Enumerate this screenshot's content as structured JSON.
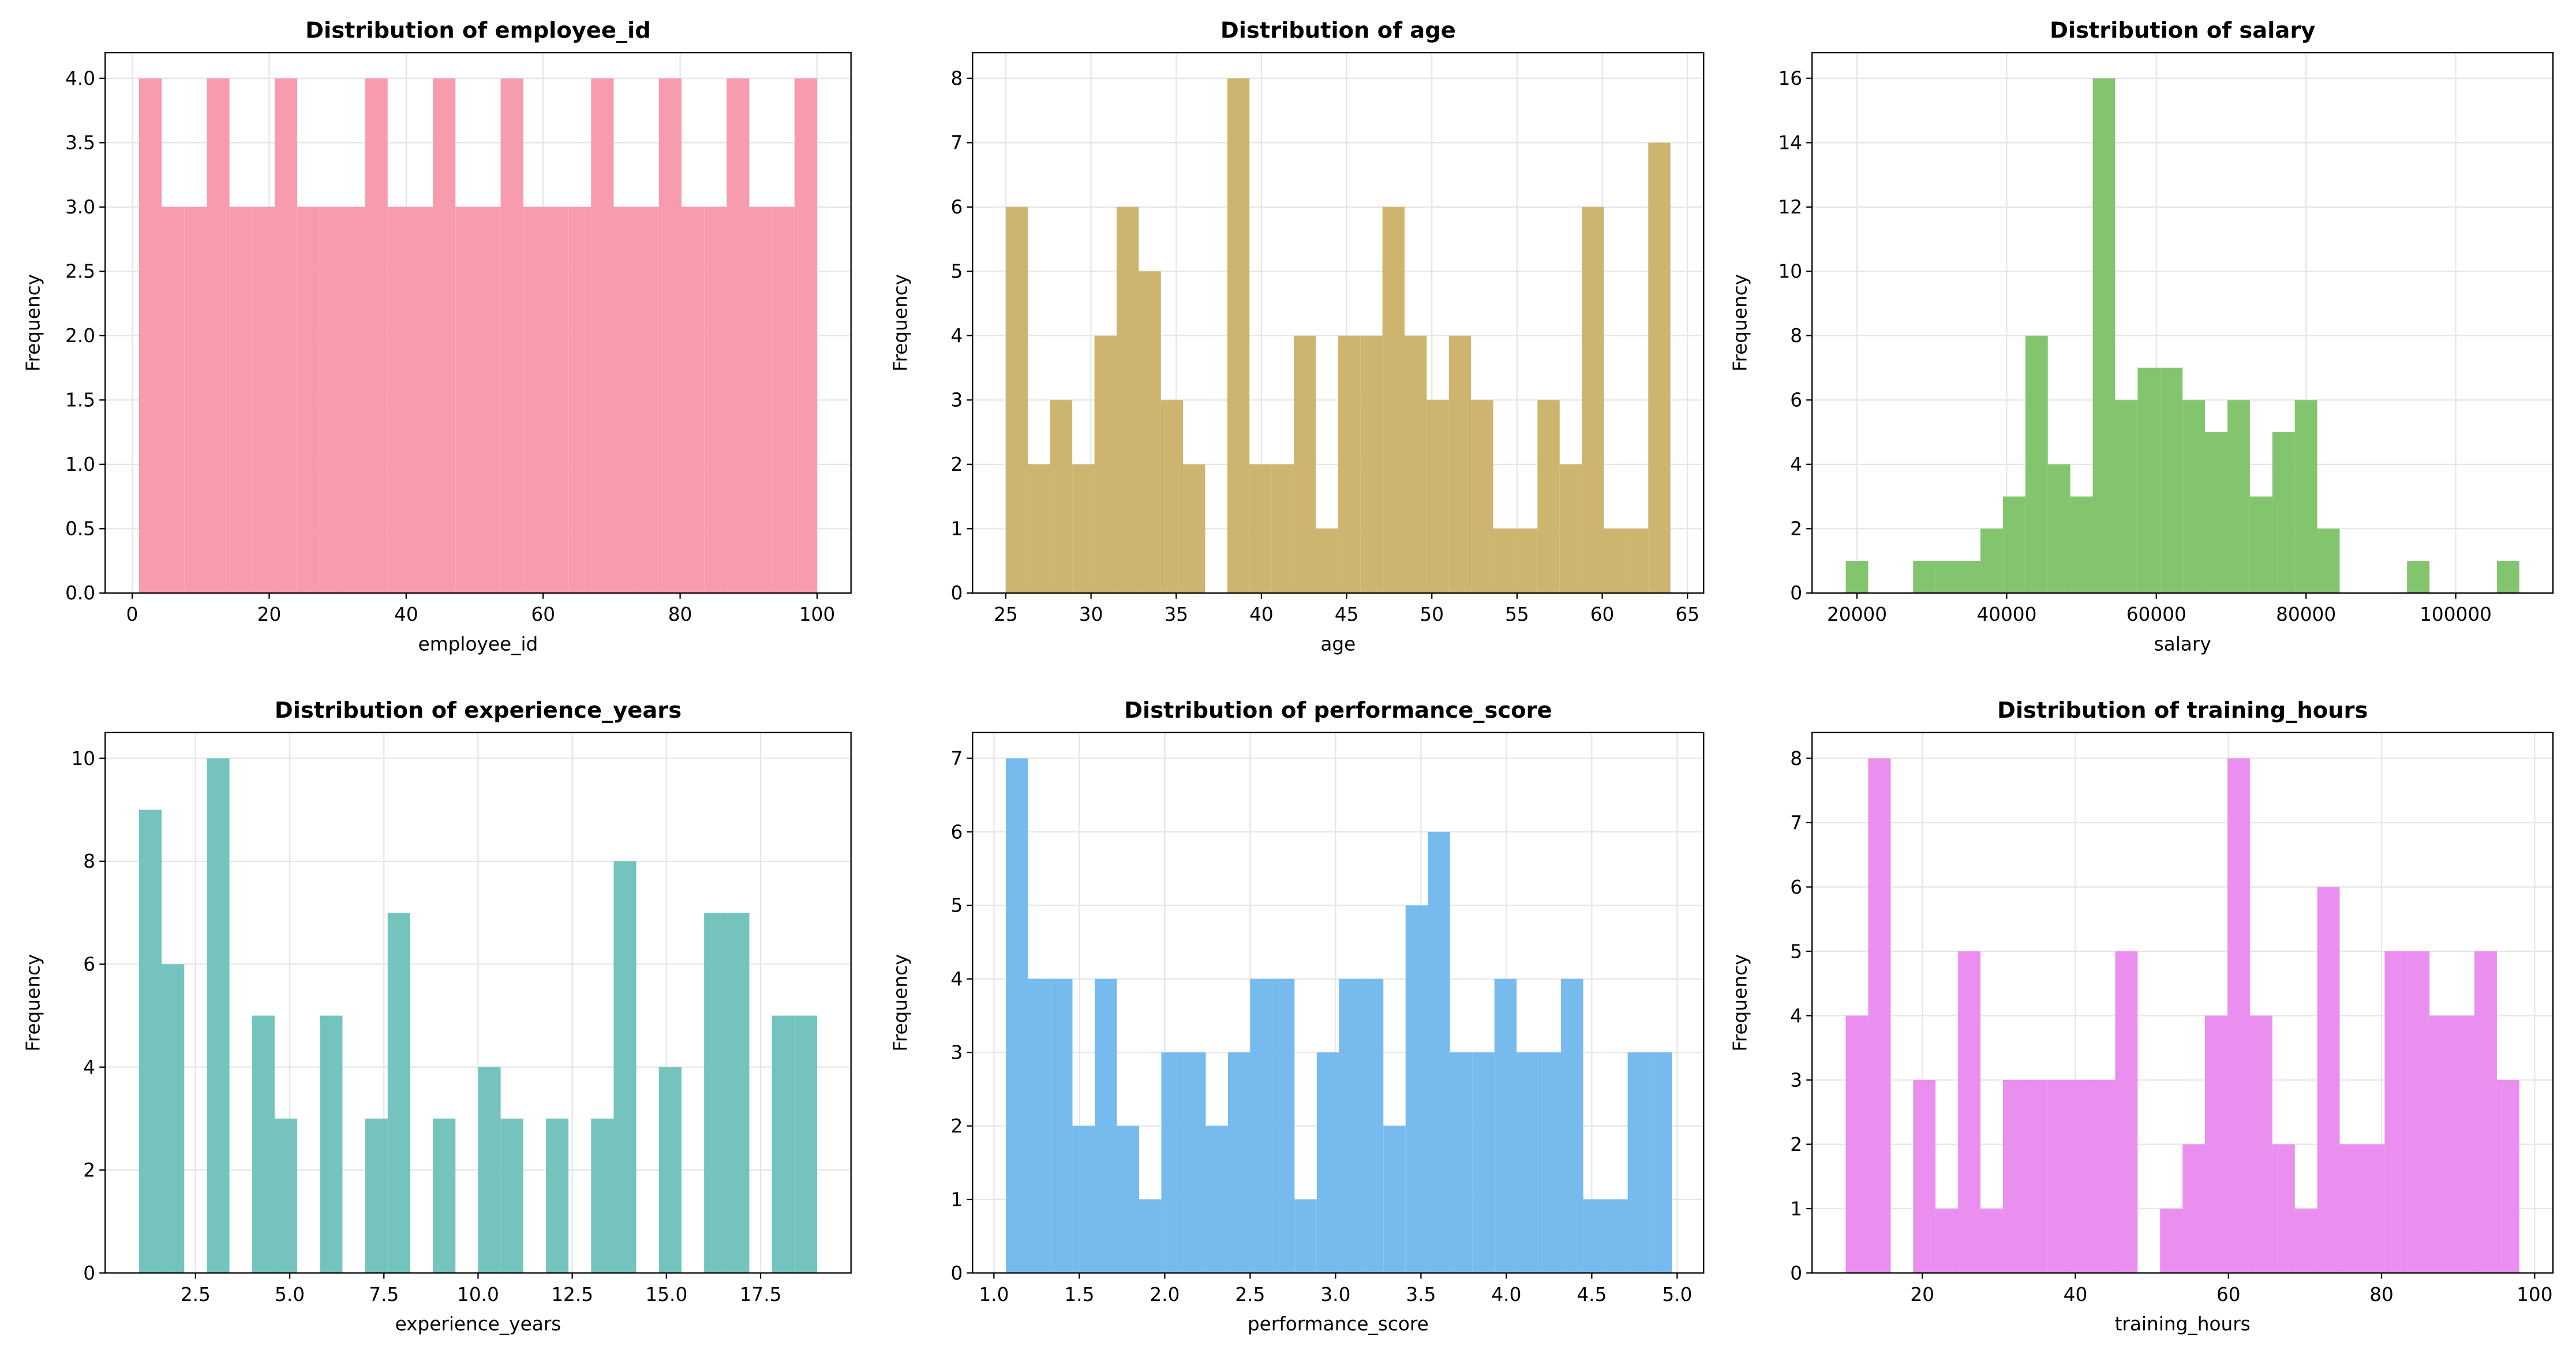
{
  "chart_data": [
    {
      "type": "histogram",
      "title": "Distribution of employee_id",
      "xlabel": "employee_id",
      "ylabel": "Frequency",
      "color": "#f79cae",
      "grid": true,
      "bins": [
        1,
        4.3,
        7.6,
        10.9,
        14.2,
        17.5,
        20.8,
        24.1,
        27.4,
        30.7,
        34,
        37.3,
        40.6,
        43.9,
        47.2,
        50.5,
        53.8,
        57.1,
        60.4,
        63.7,
        67,
        70.3,
        73.6,
        76.9,
        80.2,
        83.5,
        86.8,
        90.1,
        93.4,
        96.7,
        100
      ],
      "counts": [
        4,
        3,
        3,
        4,
        3,
        3,
        4,
        3,
        3,
        3,
        4,
        3,
        3,
        4,
        3,
        3,
        4,
        3,
        3,
        3,
        4,
        3,
        3,
        4,
        3,
        3,
        4,
        3,
        3,
        4
      ],
      "xlim": [
        -3.95,
        104.95
      ],
      "ylim": [
        0,
        4.2
      ],
      "xticks": [
        0,
        20,
        40,
        60,
        80,
        100
      ],
      "yticks": [
        {
          "value": 0,
          "label": "0.0"
        },
        {
          "value": 0.5,
          "label": "0.5"
        },
        {
          "value": 1,
          "label": "1.0"
        },
        {
          "value": 1.5,
          "label": "1.5"
        },
        {
          "value": 2,
          "label": "2.0"
        },
        {
          "value": 2.5,
          "label": "2.5"
        },
        {
          "value": 3,
          "label": "3.0"
        },
        {
          "value": 3.5,
          "label": "3.5"
        },
        {
          "value": 4,
          "label": "4.0"
        }
      ]
    },
    {
      "type": "histogram",
      "title": "Distribution of age",
      "xlabel": "age",
      "ylabel": "Frequency",
      "color": "#cdb56f",
      "grid": true,
      "bins": [
        25,
        26.3,
        27.6,
        28.9,
        30.2,
        31.5,
        32.8,
        34.1,
        35.4,
        36.7,
        38,
        39.3,
        40.6,
        41.9,
        43.2,
        44.5,
        45.8,
        47.1,
        48.4,
        49.7,
        51,
        52.3,
        53.6,
        54.9,
        56.2,
        57.5,
        58.8,
        60.1,
        61.4,
        62.7,
        64
      ],
      "counts": [
        6,
        2,
        3,
        2,
        4,
        6,
        5,
        3,
        2,
        0,
        8,
        2,
        2,
        4,
        1,
        4,
        4,
        6,
        4,
        3,
        4,
        3,
        1,
        1,
        3,
        2,
        6,
        1,
        1,
        7
      ],
      "xlim": [
        23.05,
        65.95
      ],
      "ylim": [
        0,
        8.4
      ],
      "xticks": [
        25,
        30,
        35,
        40,
        45,
        50,
        55,
        60,
        65
      ],
      "yticks": [
        0,
        1,
        2,
        3,
        4,
        5,
        6,
        7,
        8
      ]
    },
    {
      "type": "histogram",
      "title": "Distribution of salary",
      "xlabel": "salary",
      "ylabel": "Frequency",
      "color": "#83c56f",
      "grid": true,
      "bins": [
        18500,
        21500,
        24500,
        27500,
        30500,
        33500,
        36500,
        39500,
        42500,
        45500,
        48500,
        51500,
        54500,
        57500,
        60500,
        63500,
        66500,
        69500,
        72500,
        75500,
        78500,
        81500,
        84500,
        87500,
        90500,
        93500,
        96500,
        99500,
        102500,
        105500,
        108500
      ],
      "counts": [
        1,
        0,
        0,
        1,
        1,
        1,
        2,
        3,
        8,
        4,
        3,
        16,
        6,
        7,
        7,
        6,
        5,
        6,
        3,
        5,
        6,
        2,
        0,
        0,
        0,
        1,
        0,
        0,
        0,
        1
      ],
      "xlim": [
        14000,
        113000
      ],
      "ylim": [
        0,
        16.8
      ],
      "xticks": [
        20000,
        40000,
        60000,
        80000,
        100000
      ],
      "yticks": [
        0,
        2,
        4,
        6,
        8,
        10,
        12,
        14,
        16
      ]
    },
    {
      "type": "histogram",
      "title": "Distribution of experience_years",
      "xlabel": "experience_years",
      "ylabel": "Frequency",
      "color": "#74c4bd",
      "grid": true,
      "bins": [
        1,
        1.6,
        2.2,
        2.8,
        3.4,
        4,
        4.6,
        5.2,
        5.8,
        6.4,
        7,
        7.6,
        8.2,
        8.8,
        9.4,
        10,
        10.6,
        11.2,
        11.8,
        12.4,
        13,
        13.6,
        14.2,
        14.8,
        15.4,
        16,
        16.6,
        17.2,
        17.8,
        18.4,
        19
      ],
      "counts": [
        9,
        6,
        0,
        10,
        0,
        5,
        3,
        0,
        5,
        0,
        3,
        7,
        0,
        3,
        0,
        4,
        3,
        0,
        3,
        0,
        3,
        8,
        0,
        4,
        0,
        7,
        7,
        0,
        5,
        5
      ],
      "xlim": [
        0.1,
        19.9
      ],
      "ylim": [
        0,
        10.5
      ],
      "xticks": [
        2.5,
        {
          "value": 5,
          "label": "5.0"
        },
        7.5,
        {
          "value": 10,
          "label": "10.0"
        },
        12.5,
        {
          "value": 15,
          "label": "15.0"
        },
        17.5
      ],
      "yticks": [
        0,
        2,
        4,
        6,
        8,
        10
      ]
    },
    {
      "type": "histogram",
      "title": "Distribution of performance_score",
      "xlabel": "performance_score",
      "ylabel": "Frequency",
      "color": "#77bbee",
      "grid": true,
      "bins": [
        1.07,
        1.2,
        1.33,
        1.46,
        1.59,
        1.72,
        1.85,
        1.98,
        2.11,
        2.24,
        2.37,
        2.5,
        2.63,
        2.76,
        2.89,
        3.02,
        3.15,
        3.28,
        3.41,
        3.54,
        3.67,
        3.8,
        3.93,
        4.06,
        4.19,
        4.32,
        4.45,
        4.58,
        4.71,
        4.84,
        4.97
      ],
      "counts": [
        7,
        4,
        4,
        2,
        4,
        2,
        1,
        3,
        3,
        2,
        3,
        4,
        4,
        1,
        3,
        4,
        4,
        2,
        5,
        6,
        3,
        3,
        4,
        3,
        3,
        4,
        1,
        1,
        3,
        3
      ],
      "xlim": [
        0.875,
        5.155
      ],
      "ylim": [
        0,
        7.35
      ],
      "xticks": [
        {
          "value": 1,
          "label": "1.0"
        },
        1.5,
        {
          "value": 2,
          "label": "2.0"
        },
        2.5,
        {
          "value": 3,
          "label": "3.0"
        },
        3.5,
        {
          "value": 4,
          "label": "4.0"
        },
        4.5,
        {
          "value": 5,
          "label": "5.0"
        }
      ],
      "yticks": [
        0,
        1,
        2,
        3,
        4,
        5,
        6,
        7
      ]
    },
    {
      "type": "histogram",
      "title": "Distribution of training_hours",
      "xlabel": "training_hours",
      "ylabel": "Frequency",
      "color": "#ea8ef0",
      "grid": true,
      "bins": [
        10,
        12.93,
        15.87,
        18.8,
        21.73,
        24.67,
        27.6,
        30.53,
        33.47,
        36.4,
        39.33,
        42.27,
        45.2,
        48.13,
        51.07,
        54,
        56.93,
        59.87,
        62.8,
        65.73,
        68.67,
        71.6,
        74.53,
        77.47,
        80.4,
        83.33,
        86.27,
        89.2,
        92.13,
        95.07,
        98
      ],
      "counts": [
        4,
        8,
        0,
        3,
        1,
        5,
        1,
        3,
        3,
        3,
        3,
        3,
        5,
        0,
        1,
        2,
        4,
        8,
        4,
        2,
        1,
        6,
        2,
        2,
        5,
        5,
        4,
        4,
        5,
        3
      ],
      "xlim": [
        5.6,
        102.4
      ],
      "ylim": [
        0,
        8.4
      ],
      "xticks": [
        20,
        40,
        60,
        80,
        100
      ],
      "yticks": [
        0,
        1,
        2,
        3,
        4,
        5,
        6,
        7,
        8
      ]
    }
  ]
}
